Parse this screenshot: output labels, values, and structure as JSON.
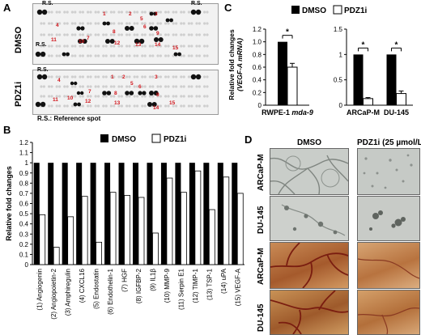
{
  "panels": {
    "A": "A",
    "B": "B",
    "C": "C",
    "D": "D"
  },
  "panelA": {
    "labels": [
      "DMSO",
      "PDZ1i"
    ],
    "rs_label": "R.S.",
    "footnote": "R.S.: Reference spot",
    "dmso_marks": [
      "1",
      "2",
      "3",
      "4",
      "5",
      "6",
      "7",
      "8",
      "9",
      "10",
      "11",
      "12",
      "13",
      "14",
      "15"
    ],
    "pdz_marks": [
      "1",
      "2",
      "3",
      "4",
      "5",
      "6",
      "7",
      "8",
      "9",
      "10",
      "11",
      "12",
      "13",
      "14",
      "15"
    ]
  },
  "panelB": {
    "ylabel": "Relative fold changes",
    "legend": [
      "DMSO",
      "PDZ1i"
    ]
  },
  "panelC": {
    "ylabel_line1": "Relative fold changes",
    "ylabel_line2": "(VEGF-A mRNA)",
    "legend": [
      "DMSO",
      "PDZ1i"
    ],
    "star": "*"
  },
  "panelD": {
    "col_headers": [
      "DMSO",
      "PDZ1i (25 µmol/L)"
    ],
    "row_labels": [
      "ARCaP-M",
      "DU-145",
      "ARCaP-M",
      "DU-145"
    ]
  },
  "chart_data": [
    {
      "type": "bar",
      "panel": "B",
      "categories": [
        "(1) Angiogenin",
        "(2) Angiopoietin-2",
        "(3) Amphiregulin",
        "(4) CXCL16",
        "(5) Endostatin",
        "(6) Endothelin-1",
        "(7) HGF",
        "(8) IGFBP-2",
        "(9) IL1β",
        "(10) MMP-9",
        "(11) Serpin E1",
        "(12) TIMP-1",
        "(13) TSP-1",
        "(14) uPA",
        "(15) VEGF-A"
      ],
      "series": [
        {
          "name": "DMSO",
          "values": [
            1,
            1,
            1,
            1,
            1,
            1,
            1,
            1,
            1,
            1,
            1,
            1,
            1,
            1,
            1
          ]
        },
        {
          "name": "PDZ1i",
          "values": [
            0.49,
            0.17,
            0.47,
            0.67,
            0.22,
            0.71,
            0.68,
            0.66,
            0.31,
            0.85,
            0.71,
            0.92,
            0.54,
            0.86,
            0.7
          ]
        }
      ],
      "yticks": [
        "0",
        "0.1",
        "0.2",
        "0.3",
        "0.4",
        "0.5",
        "0.6",
        "0.7",
        "0.8",
        "0.9",
        "1",
        "1.1",
        "1.2"
      ],
      "ylim": [
        0,
        1.2
      ],
      "ylabel": "Relative fold changes"
    },
    {
      "type": "bar",
      "panel": "C-left",
      "categories": [
        "RWPE-1 mda-9"
      ],
      "series": [
        {
          "name": "DMSO",
          "values": [
            1.0
          ]
        },
        {
          "name": "PDZ1i",
          "values": [
            0.6
          ]
        }
      ],
      "errors": [
        0.06
      ],
      "yticks": [
        "0",
        "0.2",
        "0.4",
        "0.6",
        "0.8",
        "1.0",
        "1.2"
      ],
      "ylim": [
        0,
        1.2
      ]
    },
    {
      "type": "bar",
      "panel": "C-right",
      "categories": [
        "ARCaP-M",
        "DU-145"
      ],
      "series": [
        {
          "name": "DMSO",
          "values": [
            1.0,
            1.0
          ]
        },
        {
          "name": "PDZ1i",
          "values": [
            0.13,
            0.23
          ]
        }
      ],
      "errors": [
        0.02,
        0.05
      ],
      "yticks": [
        "0",
        "0.5",
        "1",
        "1.5"
      ],
      "ylim": [
        0,
        1.5
      ]
    }
  ]
}
